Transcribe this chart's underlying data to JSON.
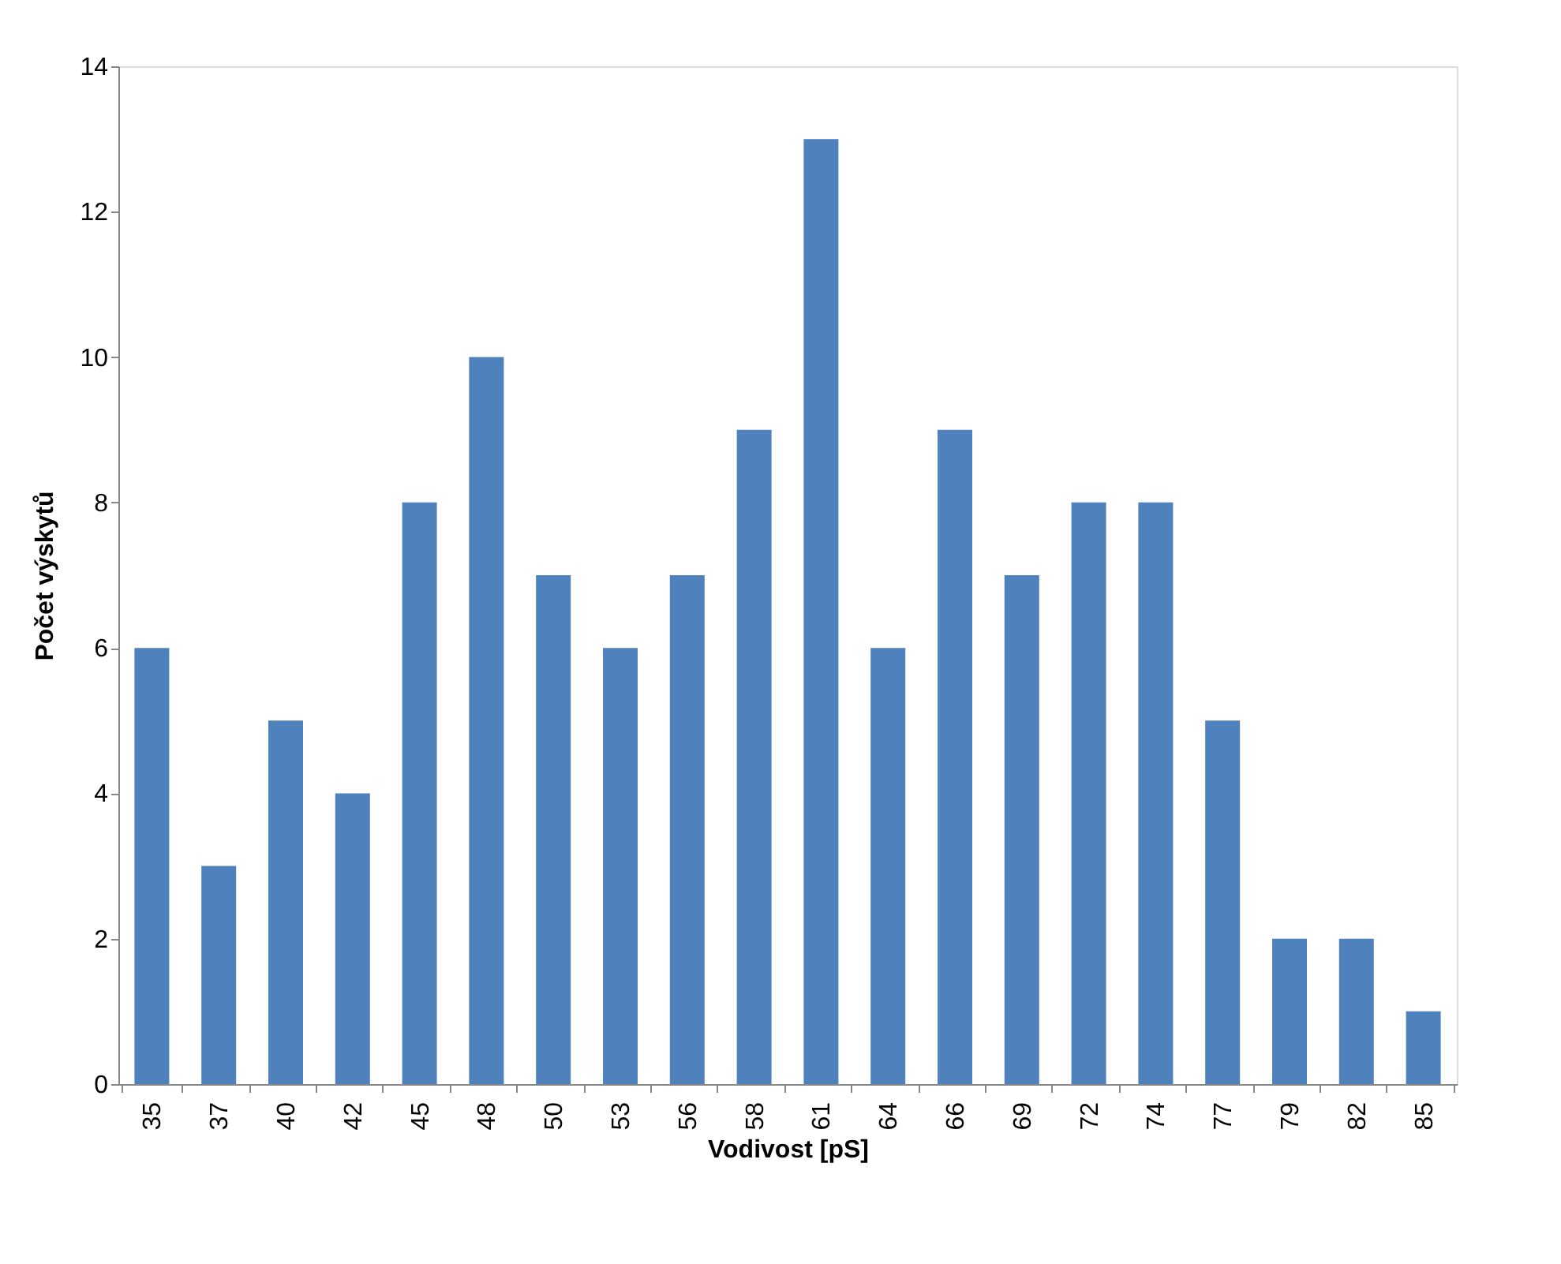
{
  "chart_data": {
    "type": "bar",
    "xlabel": "Vodivost [pS]",
    "ylabel": "Počet výskytů",
    "categories": [
      "35",
      "37",
      "40",
      "42",
      "45",
      "48",
      "50",
      "53",
      "56",
      "58",
      "61",
      "64",
      "66",
      "69",
      "72",
      "74",
      "77",
      "79",
      "82",
      "85"
    ],
    "values": [
      6,
      3,
      5,
      4,
      8,
      10,
      7,
      6,
      7,
      9,
      13,
      6,
      9,
      7,
      8,
      8,
      5,
      2,
      2,
      1
    ],
    "color": "#4f81bd",
    "ylim": [
      0,
      14
    ],
    "yticks": [
      0,
      2,
      4,
      6,
      8,
      10,
      12,
      14
    ],
    "grid": false
  }
}
